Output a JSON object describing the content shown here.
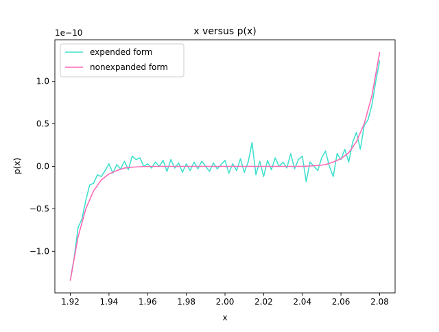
{
  "chart_data": {
    "type": "line",
    "title": "x versus p(x)",
    "xlabel": "x",
    "ylabel": "p(x)",
    "y_offset_label": "1e−10",
    "y_unit_scale": 1e-10,
    "xlim": [
      1.912,
      2.088
    ],
    "ylim": [
      -1.49e-10,
      1.49e-10
    ],
    "x_ticks": [
      1.92,
      1.94,
      1.96,
      1.98,
      2.0,
      2.02,
      2.04,
      2.06,
      2.08
    ],
    "x_tick_labels": [
      "1.92",
      "1.94",
      "1.96",
      "1.98",
      "2.00",
      "2.02",
      "2.04",
      "2.06",
      "2.08"
    ],
    "y_ticks": [
      -1e-10,
      -5e-11,
      0.0,
      5e-11,
      1e-10
    ],
    "y_tick_labels": [
      "−1.0",
      "−0.5",
      "0.0",
      "0.5",
      "1.0"
    ],
    "grid": false,
    "legend_position": "top-left",
    "series": [
      {
        "name": "expended form",
        "color": "#40e0d0",
        "x": [
          1.92,
          1.922,
          1.924,
          1.926,
          1.928,
          1.93,
          1.932,
          1.934,
          1.936,
          1.938,
          1.94,
          1.942,
          1.944,
          1.946,
          1.948,
          1.95,
          1.952,
          1.954,
          1.956,
          1.958,
          1.96,
          1.962,
          1.964,
          1.966,
          1.968,
          1.97,
          1.972,
          1.974,
          1.976,
          1.978,
          1.98,
          1.982,
          1.984,
          1.986,
          1.988,
          1.99,
          1.992,
          1.994,
          1.996,
          1.998,
          2.0,
          2.002,
          2.004,
          2.006,
          2.008,
          2.01,
          2.012,
          2.014,
          2.016,
          2.018,
          2.02,
          2.022,
          2.024,
          2.026,
          2.028,
          2.03,
          2.032,
          2.034,
          2.036,
          2.038,
          2.04,
          2.042,
          2.044,
          2.046,
          2.048,
          2.05,
          2.052,
          2.054,
          2.056,
          2.058,
          2.06,
          2.062,
          2.064,
          2.066,
          2.068,
          2.07,
          2.072,
          2.074,
          2.076,
          2.078,
          2.08
        ],
        "y": [
          -1.34e-10,
          -1.07e-10,
          -7.2e-11,
          -6.2e-11,
          -4e-11,
          -2.2e-11,
          -2e-11,
          -1e-11,
          -1.2e-11,
          -5e-12,
          3e-12,
          -8e-12,
          2e-12,
          -3e-12,
          6e-12,
          -4e-12,
          1.2e-11,
          8e-12,
          1e-11,
          0.0,
          3e-12,
          -2e-12,
          5e-12,
          0.0,
          7e-12,
          -6e-12,
          8e-12,
          -2e-12,
          4e-12,
          -7e-12,
          3e-12,
          -5e-12,
          5e-12,
          -3e-12,
          6e-12,
          0.0,
          -6e-12,
          4e-12,
          -3e-12,
          2e-12,
          7e-12,
          -8e-12,
          3e-12,
          -5e-12,
          9e-12,
          -7e-12,
          5e-12,
          2.8e-11,
          -1e-11,
          6e-12,
          -1.2e-11,
          7e-12,
          -4e-12,
          1e-11,
          0.0,
          5e-12,
          -2e-12,
          1.5e-11,
          -3e-12,
          8e-12,
          1.2e-11,
          -1.8e-11,
          5e-12,
          0.0,
          -5e-12,
          1e-11,
          1.8e-11,
          0.0,
          -1.2e-11,
          1.5e-11,
          8e-12,
          2e-11,
          5e-12,
          2.8e-11,
          4e-11,
          2e-11,
          4.8e-11,
          5.5e-11,
          7.2e-11,
          1e-10,
          1.24e-10
        ]
      },
      {
        "name": "nonexpanded form",
        "color": "#ff69b4",
        "x": [
          1.92,
          1.924,
          1.928,
          1.932,
          1.936,
          1.94,
          1.944,
          1.948,
          1.952,
          1.956,
          1.96,
          1.964,
          1.968,
          1.972,
          1.976,
          1.98,
          1.984,
          1.988,
          1.992,
          1.996,
          2.0,
          2.004,
          2.008,
          2.012,
          2.016,
          2.02,
          2.024,
          2.028,
          2.032,
          2.036,
          2.04,
          2.044,
          2.048,
          2.052,
          2.056,
          2.06,
          2.064,
          2.068,
          2.072,
          2.076,
          2.08
        ],
        "y": [
          -1.34e-10,
          -8.3e-11,
          -5e-11,
          -2.9e-11,
          -1.6e-11,
          -9e-12,
          -5e-12,
          -2e-12,
          -1e-12,
          -4e-13,
          -1e-13,
          0.0,
          0.0,
          0.0,
          0.0,
          0.0,
          0.0,
          0.0,
          0.0,
          0.0,
          0.0,
          0.0,
          0.0,
          0.0,
          0.0,
          0.0,
          0.0,
          0.0,
          0.0,
          0.0,
          1e-13,
          4e-13,
          1e-12,
          2e-12,
          5e-12,
          9e-12,
          1.6e-11,
          2.9e-11,
          5e-11,
          8.3e-11,
          1.34e-10
        ]
      }
    ]
  }
}
